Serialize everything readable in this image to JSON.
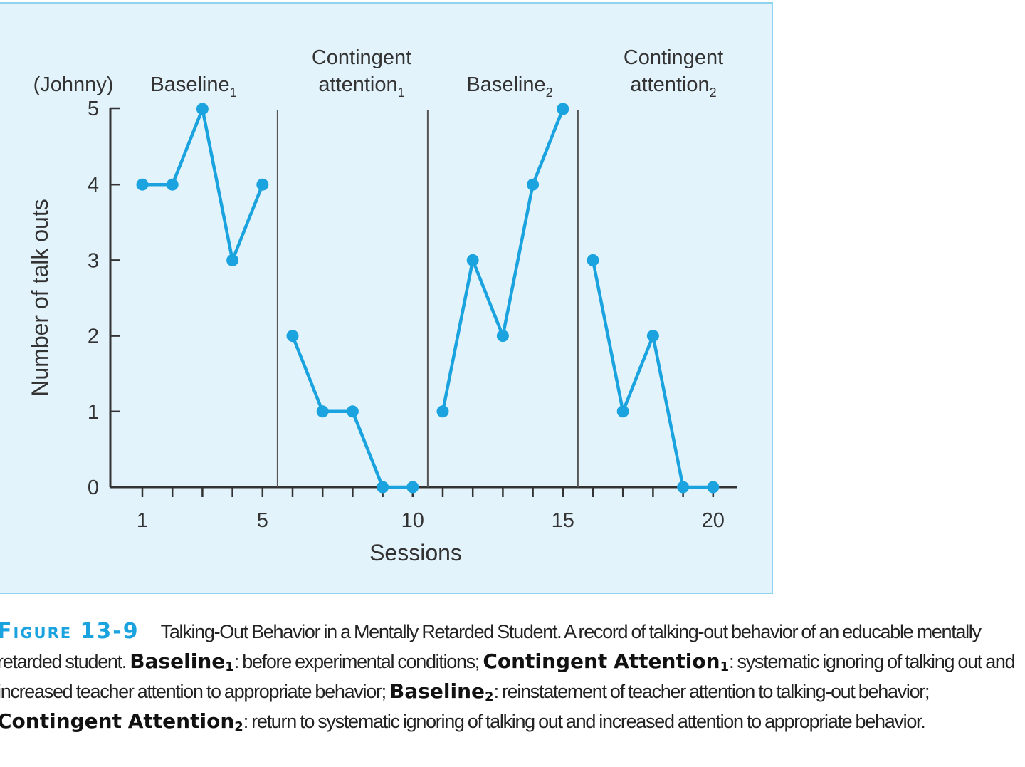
{
  "chart_data": {
    "type": "line",
    "subject_label": "(Johnny)",
    "xlabel": "Sessions",
    "ylabel": "Number of talk outs",
    "xlim": [
      0,
      21
    ],
    "ylim": [
      0,
      5
    ],
    "xticks": [
      1,
      5,
      10,
      15,
      20
    ],
    "yticks": [
      0,
      1,
      2,
      3,
      4,
      5
    ],
    "phase_lines_after": [
      5,
      10,
      15
    ],
    "line_color": "#1aa3df",
    "phases": [
      {
        "name": "Baseline",
        "subscript": "1",
        "lines": [
          "Baseline"
        ],
        "x": [
          1,
          2,
          3,
          4,
          5
        ],
        "y": [
          4,
          4,
          5,
          3,
          4
        ]
      },
      {
        "name": "Contingent attention",
        "subscript": "1",
        "lines": [
          "Contingent",
          "attention"
        ],
        "x": [
          6,
          7,
          8,
          9,
          10
        ],
        "y": [
          2,
          1,
          1,
          0,
          0
        ]
      },
      {
        "name": "Baseline",
        "subscript": "2",
        "lines": [
          "Baseline"
        ],
        "x": [
          11,
          12,
          13,
          14,
          15
        ],
        "y": [
          1,
          3,
          2,
          4,
          5
        ]
      },
      {
        "name": "Contingent attention",
        "subscript": "2",
        "lines": [
          "Contingent",
          "attention"
        ],
        "x": [
          16,
          17,
          18,
          19,
          20
        ],
        "y": [
          3,
          1,
          2,
          0,
          0
        ]
      }
    ]
  },
  "caption": {
    "figure_label": "Figure 13-9",
    "title": "Talking-Out Behavior in a Mentally Retarded Student. A record of talking-out behavior of an educable mentally retarded student.",
    "terms": [
      {
        "term": "Baseline",
        "sub": "1",
        "text": ": before experimental conditions;"
      },
      {
        "term": "Contingent Attention",
        "sub": "1",
        "text": ": systematic ignoring of talking out and increased teacher attention to appropriate behavior;"
      },
      {
        "term": "Baseline",
        "sub": "2",
        "text": ": reinstatement of teacher attention to talking-out behavior;"
      },
      {
        "term": "Contingent Attention",
        "sub": "2",
        "text": ": return to systematic ignoring of talking out and increased attention to appropriate behavior."
      }
    ]
  }
}
